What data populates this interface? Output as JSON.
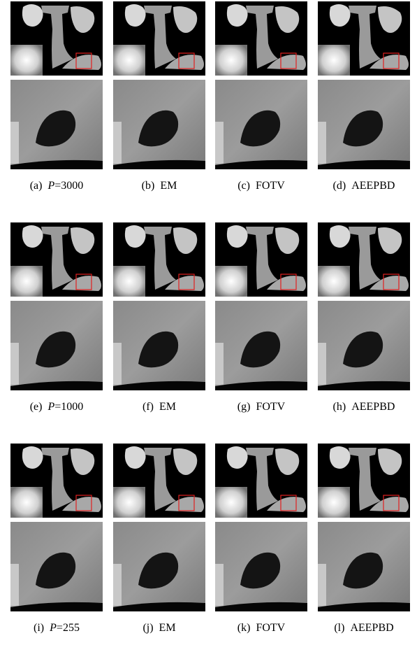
{
  "groups": [
    {
      "captions": [
        {
          "tag": "(a)",
          "var": "P",
          "text": "=3000"
        },
        {
          "tag": "(b)",
          "text": "EM"
        },
        {
          "tag": "(c)",
          "text": "FOTV"
        },
        {
          "tag": "(d)",
          "text": "AEEPBD"
        }
      ]
    },
    {
      "captions": [
        {
          "tag": "(e)",
          "var": "P",
          "text": "=1000"
        },
        {
          "tag": "(f)",
          "text": "EM"
        },
        {
          "tag": "(g)",
          "text": "FOTV"
        },
        {
          "tag": "(h)",
          "text": "AEEPBD"
        }
      ]
    },
    {
      "captions": [
        {
          "tag": "(i)",
          "var": "P",
          "text": "=255"
        },
        {
          "tag": "(j)",
          "text": "EM"
        },
        {
          "tag": "(k)",
          "text": "FOTV"
        },
        {
          "tag": "(l)",
          "text": "AEEPBD"
        }
      ]
    }
  ]
}
